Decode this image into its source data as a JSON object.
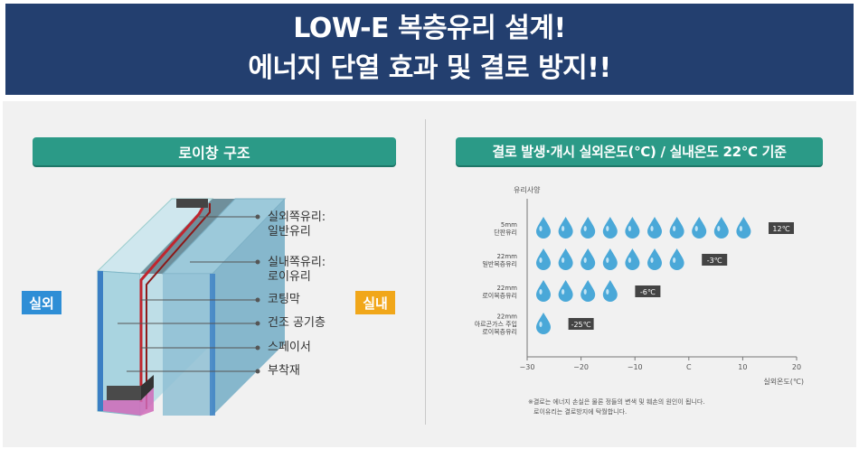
{
  "header": {
    "line1": "LOW-E 복층유리 설계!",
    "line2": "에너지 단열 효과 및 결로 방지!!"
  },
  "left": {
    "title": "로이창 구조",
    "outside": "실외",
    "inside": "실내",
    "labels": [
      {
        "id": "outer-glass",
        "lines": [
          "실외쪽유리:",
          "일반유리"
        ]
      },
      {
        "id": "inner-glass",
        "lines": [
          "실내쪽유리:",
          "로이유리"
        ]
      },
      {
        "id": "coating",
        "lines": [
          "코팅막"
        ]
      },
      {
        "id": "dry-air",
        "lines": [
          "건조 공기층"
        ]
      },
      {
        "id": "spacer",
        "lines": [
          "스페이서"
        ]
      },
      {
        "id": "adhesive",
        "lines": [
          "부착재"
        ]
      }
    ]
  },
  "right": {
    "title": "결로 발생·개시 실외온도(℃) / 실내온도 22℃ 기준",
    "y_axis_title": "유리사양",
    "x_axis_title": "실외온도(℃)",
    "x_ticks": [
      "−30",
      "−20",
      "−10",
      "C",
      "10",
      "20"
    ],
    "footnote": [
      "※결로는 에너지 손실은 물론 정들의 변색 및 훼손의 원인이 됩니다.",
      "로이유리는 결로방지에 탁월합니다."
    ]
  },
  "chart_data": {
    "type": "bar",
    "title": "결로 발생·개시 실외온도(℃) / 실내온도 22℃ 기준",
    "ylabel": "유리사양",
    "xlabel": "실외온도(℃)",
    "xlim": [
      -30,
      20
    ],
    "series": [
      {
        "category": [
          "5mm",
          "단판유리"
        ],
        "value": 12,
        "label": "12℃",
        "drops": 10
      },
      {
        "category": [
          "22mm",
          "일반복층유리"
        ],
        "value": -3,
        "label": "-3℃",
        "drops": 7
      },
      {
        "category": [
          "22mm",
          "로이복층유리"
        ],
        "value": -6,
        "label": "-6℃",
        "drops": 4
      },
      {
        "category": [
          "22mm",
          "아르곤가스 주입",
          "로이복층유리"
        ],
        "value": -25,
        "label": "-25℃",
        "drops": 1
      }
    ]
  },
  "colors": {
    "header_bg": "#233f6f",
    "pill": "#2b9a87",
    "outside": "#2e8ed6",
    "inside": "#f1a71a",
    "drop": "#4aa8d8",
    "value_tag": "#444444"
  }
}
